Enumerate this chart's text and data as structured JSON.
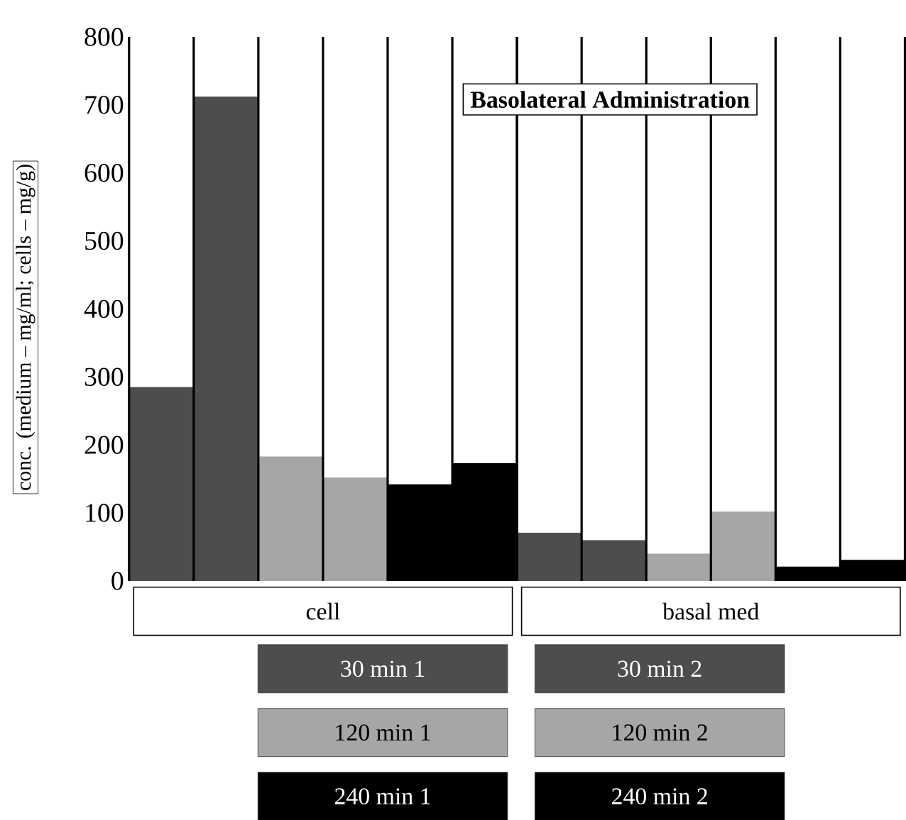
{
  "chart_data": {
    "type": "bar",
    "title": "Basolateral Administration",
    "ylabel": "conc. (medium – mg/ml; cells – mg/g)",
    "categories": [
      "cell",
      "basal med"
    ],
    "series": [
      {
        "name": "30 min 1",
        "color": "#4d4d4d",
        "values": [
          285,
          71
        ]
      },
      {
        "name": "30 min 2",
        "color": "#4d4d4d",
        "values": [
          712,
          60
        ]
      },
      {
        "name": "120 min 1",
        "color": "#a6a6a6",
        "values": [
          183,
          40
        ]
      },
      {
        "name": "120 min 2",
        "color": "#a6a6a6",
        "values": [
          152,
          102
        ]
      },
      {
        "name": "240 min 1",
        "color": "#000000",
        "values": [
          142,
          21
        ]
      },
      {
        "name": "240 min 2",
        "color": "#000000",
        "values": [
          173,
          31
        ]
      }
    ],
    "ylim": [
      0,
      800
    ],
    "yticks": [
      0,
      100,
      200,
      300,
      400,
      500,
      600,
      700,
      800
    ],
    "grid": "x",
    "legend": "bottom"
  }
}
